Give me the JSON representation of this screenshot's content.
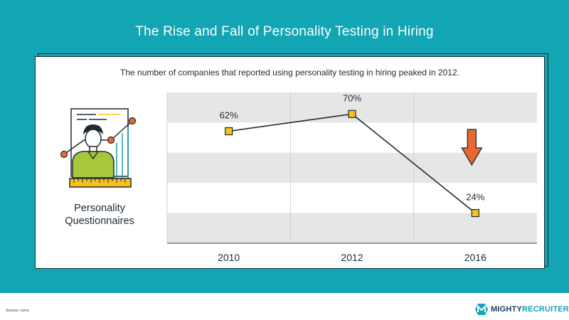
{
  "header": {
    "title": "The Rise and Fall of Personality Testing in Hiring"
  },
  "card": {
    "subtitle": "The number of companies that reported using personality testing in hiring peaked in 2012.",
    "illustration_label_line1": "Personality",
    "illustration_label_line2": "Questionnaires"
  },
  "footer": {
    "source": "Source: cut-e",
    "brand_mighty": "MIGHTY",
    "brand_recruiter": "RECRUITER"
  },
  "colors": {
    "teal": "#12a5b4",
    "navy": "#1c3a5e",
    "marker": "#f5c31a",
    "arrow": "#e8692f",
    "band": "#e6e6e6"
  },
  "icons": {
    "trend_indicator": "down-arrow-icon",
    "illustration": "person-with-chart-icon",
    "logo": "mighty-recruiter-logo"
  },
  "chart_data": {
    "type": "line",
    "categories": [
      "2010",
      "2012",
      "2016"
    ],
    "values": [
      62,
      70,
      24
    ],
    "labels": [
      "62%",
      "70%",
      "24%"
    ],
    "ylim": [
      10,
      80
    ],
    "grid": "alternating horizontal bands with vertical category separators",
    "annotation": "down-arrow-icon"
  }
}
